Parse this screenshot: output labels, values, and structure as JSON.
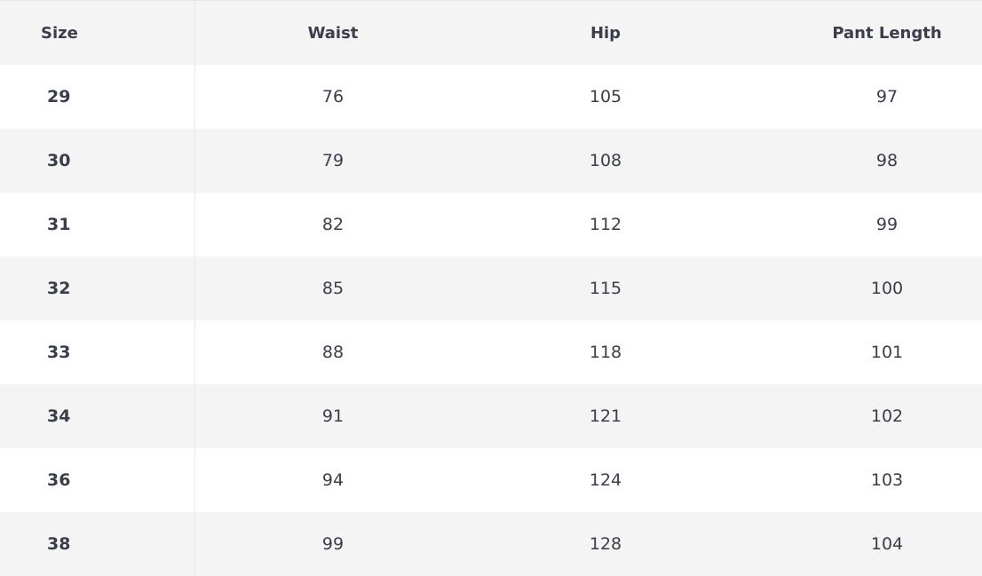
{
  "table": {
    "headers": [
      "Size",
      "Waist",
      "Hip",
      "Pant Length"
    ],
    "rows": [
      [
        "29",
        "76",
        "105",
        "97"
      ],
      [
        "30",
        "79",
        "108",
        "98"
      ],
      [
        "31",
        "82",
        "112",
        "99"
      ],
      [
        "32",
        "85",
        "115",
        "100"
      ],
      [
        "33",
        "88",
        "118",
        "101"
      ],
      [
        "34",
        "91",
        "121",
        "102"
      ],
      [
        "36",
        "94",
        "124",
        "103"
      ],
      [
        "38",
        "99",
        "128",
        "104"
      ]
    ]
  }
}
